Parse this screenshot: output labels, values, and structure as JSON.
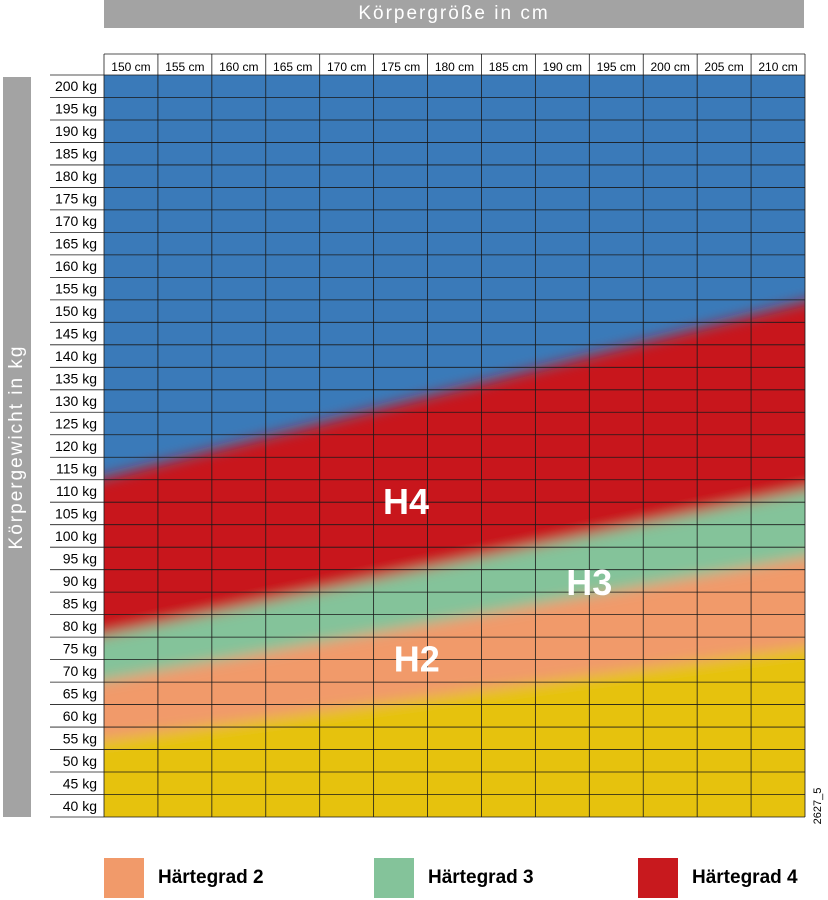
{
  "chart_data": {
    "type": "heatmap",
    "title": "",
    "xlabel": "Körpergröße in cm",
    "ylabel": "Körpergewicht in kg",
    "x_ticks": [
      "150 cm",
      "155 cm",
      "160 cm",
      "165 cm",
      "170 cm",
      "175 cm",
      "180 cm",
      "185 cm",
      "190 cm",
      "195 cm",
      "200 cm",
      "205 cm",
      "210 cm"
    ],
    "y_ticks": [
      "200 kg",
      "195 kg",
      "190 kg",
      "185 kg",
      "180 kg",
      "175 kg",
      "170 kg",
      "165 kg",
      "160 kg",
      "155 kg",
      "150 kg",
      "145 kg",
      "140 kg",
      "135 kg",
      "130 kg",
      "125 kg",
      "120 kg",
      "115 kg",
      "110 kg",
      "105 kg",
      "100 kg",
      "95 kg",
      "90 kg",
      "85 kg",
      "80 kg",
      "75 kg",
      "70 kg",
      "65 kg",
      "60 kg",
      "55 kg",
      "50 kg",
      "45 kg",
      "40 kg"
    ],
    "xlim": [
      150,
      215
    ],
    "ylim": [
      40,
      205
    ],
    "zones": [
      {
        "name": "Härtegrad 4",
        "label": "H4",
        "color": "#c8191e",
        "upper_boundary": [
          [
            150,
            115
          ],
          [
            215,
            155
          ]
        ]
      },
      {
        "name": "Härtegrad 3",
        "label": "H3",
        "color": "#84c39a",
        "upper_boundary": [
          [
            150,
            80
          ],
          [
            215,
            113
          ]
        ]
      },
      {
        "name": "Härtegrad 2",
        "label": "H2",
        "color": "#f19a6a",
        "upper_boundary": [
          [
            150,
            70
          ],
          [
            215,
            98
          ]
        ]
      },
      {
        "name": "",
        "label": "",
        "color": "#e6c20a",
        "upper_boundary": [
          [
            150,
            57
          ],
          [
            215,
            78
          ]
        ]
      }
    ],
    "above_zone_color": "#3a7ab9",
    "zone_labels": [
      {
        "text": "H4",
        "x": 178,
        "y": 110
      },
      {
        "text": "H3",
        "x": 195,
        "y": 92
      },
      {
        "text": "H2",
        "x": 179,
        "y": 75
      }
    ]
  },
  "figure_code": "2627_5",
  "legend": [
    {
      "label": "Härtegrad 2",
      "color": "#f19a6a"
    },
    {
      "label": "Härtegrad 3",
      "color": "#84c39a"
    },
    {
      "label": "Härtegrad 4",
      "color": "#c8191e"
    }
  ]
}
